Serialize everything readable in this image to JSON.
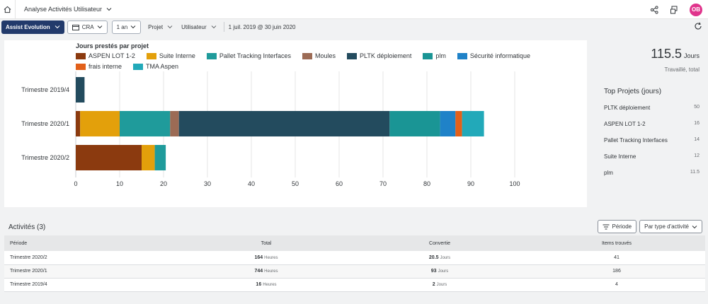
{
  "shell": {
    "app_title": "Analyse Activités Utilisateur",
    "avatar_initials": "OB"
  },
  "toolbar": {
    "primary_label": "Assist Evolution",
    "cra_label": "CRA",
    "period_label": "1 an",
    "projet_label": "Projet",
    "utilisateur_label": "Utilisateur",
    "date_range": "1 juil. 2019 @ 30 juin 2020"
  },
  "chart_data": {
    "type": "bar",
    "orientation": "horizontal",
    "stacked": true,
    "title": "Jours prestés par projet",
    "categories": [
      "Trimestre 2019/4",
      "Trimestre 2020/1",
      "Trimestre 2020/2"
    ],
    "xlim": [
      0,
      100
    ],
    "xticks": [
      0,
      10,
      20,
      30,
      40,
      50,
      60,
      70,
      80,
      90,
      100
    ],
    "series": [
      {
        "name": "ASPEN LOT 1-2",
        "color": "#8b3a0f",
        "values": [
          0,
          1,
          15
        ]
      },
      {
        "name": "Suite Interne",
        "color": "#e3a00b",
        "values": [
          0,
          9,
          3
        ]
      },
      {
        "name": "Pallet Tracking Interfaces",
        "color": "#1f9b9b",
        "values": [
          0,
          11.5,
          2.5
        ]
      },
      {
        "name": "Moules",
        "color": "#9c6b55",
        "values": [
          0,
          2,
          0
        ]
      },
      {
        "name": "PLTK déploiement",
        "color": "#234b5e",
        "values": [
          2,
          48,
          0
        ]
      },
      {
        "name": "plm",
        "color": "#1a9595",
        "values": [
          0,
          11.5,
          0
        ]
      },
      {
        "name": "Sécurité informatique",
        "color": "#1f82c8",
        "values": [
          0,
          3.5,
          0
        ]
      },
      {
        "name": "frais interne",
        "color": "#e2601a",
        "values": [
          0,
          1.5,
          0
        ]
      },
      {
        "name": "TMA Aspen",
        "color": "#22a9b9",
        "values": [
          0,
          5,
          0
        ]
      }
    ]
  },
  "kpi": {
    "value": "115.5",
    "unit": "Jours",
    "subtitle": "Travaillé, total"
  },
  "top_projects": {
    "title": "Top Projets (jours)",
    "items": [
      {
        "name": "PLTK déploiement",
        "value": "50"
      },
      {
        "name": "ASPEN LOT 1-2",
        "value": "16"
      },
      {
        "name": "Pallet Tracking Interfaces",
        "value": "14"
      },
      {
        "name": "Suite Interne",
        "value": "12"
      },
      {
        "name": "plm",
        "value": "11.5"
      }
    ]
  },
  "activities": {
    "title": "Activités (3)",
    "periode_button": "Période",
    "type_button": "Par type d'activité",
    "columns": [
      "Période",
      "Total",
      "Convertie",
      "Items trouvés"
    ],
    "rows": [
      {
        "periode": "Trimestre 2020/2",
        "total": "164",
        "total_unit": "Heures",
        "conv": "20.5",
        "conv_unit": "Jours",
        "items": "41"
      },
      {
        "periode": "Trimestre 2020/1",
        "total": "744",
        "total_unit": "Heures",
        "conv": "93",
        "conv_unit": "Jours",
        "items": "186"
      },
      {
        "periode": "Trimestre 2019/4",
        "total": "16",
        "total_unit": "Heures",
        "conv": "2",
        "conv_unit": "Jours",
        "items": "4"
      }
    ]
  }
}
